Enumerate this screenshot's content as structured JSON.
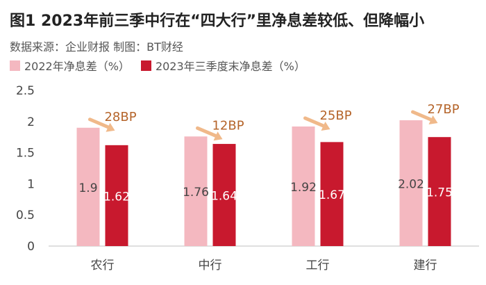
{
  "title": "图1 2023年前三季中行在“四大行”里净息差较低、但降幅小",
  "subtitle": "数据来源：企业财报 制图：BT财经",
  "chart_data": {
    "type": "bar",
    "categories": [
      "农行",
      "中行",
      "工行",
      "建行"
    ],
    "series": [
      {
        "name": "2022年净息差（%）",
        "values": [
          1.9,
          1.76,
          1.92,
          2.02
        ],
        "labels": [
          "1.9",
          "1.76",
          "1.92",
          "2.02"
        ],
        "color": "#f4b8c0"
      },
      {
        "name": "2023年三季度末净息差（%）",
        "values": [
          1.62,
          1.64,
          1.67,
          1.75
        ],
        "labels": [
          "1.62",
          "1.64",
          "1.67",
          "1.75"
        ],
        "color": "#c8192e"
      }
    ],
    "annotations": [
      "28BP",
      "12BP",
      "25BP",
      "27BP"
    ],
    "annotation_color": "#b5642a",
    "arrow_color": "#f0b98a",
    "yticks": [
      "0",
      "0.5",
      "1",
      "1.5",
      "2",
      "2.5"
    ],
    "ylim": [
      0,
      2.5
    ],
    "xlabel": "",
    "ylabel": ""
  }
}
